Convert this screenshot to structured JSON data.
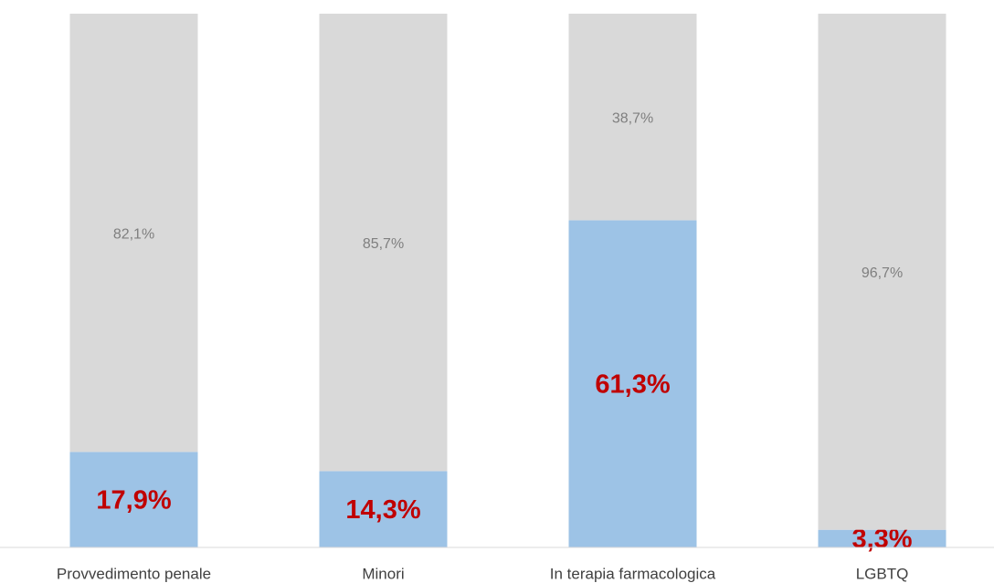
{
  "chart_data": {
    "type": "stacked_bar",
    "categories": [
      "Provvedimento penale",
      "Minori",
      "In terapia farmacologica",
      "LGBTQ"
    ],
    "ylim": [
      0,
      100
    ],
    "series": [
      {
        "color": "#9dc3e6",
        "label_color": "#c00000",
        "values": [
          17.9,
          14.3,
          61.3,
          3.3
        ],
        "value_labels": [
          "17,9%",
          "14,3%",
          "61,3%",
          "3,3%"
        ]
      },
      {
        "color": "#d9d9d9",
        "label_color": "#7f7f7f",
        "values": [
          82.1,
          85.7,
          38.7,
          96.7
        ],
        "value_labels": [
          "82,1%",
          "85,7%",
          "38,7%",
          "96,7%"
        ]
      }
    ]
  }
}
